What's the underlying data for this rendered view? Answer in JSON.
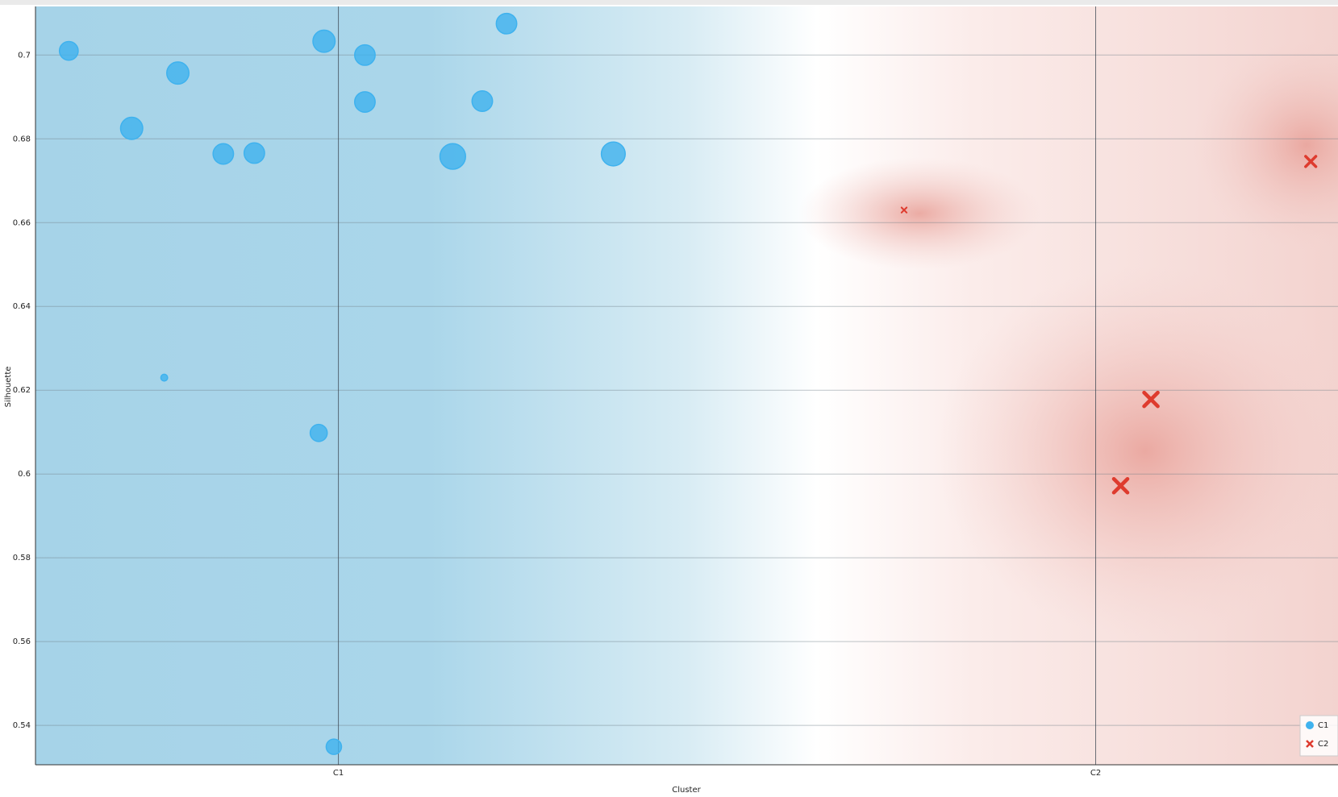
{
  "chart_data": {
    "type": "scatter",
    "x_label": "Cluster",
    "y_label": "Silhouette",
    "xlim": [
      -0.4,
      1.32
    ],
    "ylim": [
      0.5306,
      0.7116
    ],
    "xticks": [
      {
        "value": 0,
        "label": "C1"
      },
      {
        "value": 1,
        "label": "C2"
      }
    ],
    "yticks": [
      0.54,
      0.56,
      0.58,
      {
        "value": 0.6,
        "label": "0.6"
      },
      0.62,
      0.64,
      0.66,
      0.68,
      {
        "value": 0.7,
        "label": "0.7"
      }
    ],
    "grid": true,
    "legend": "lower right",
    "series": [
      {
        "name": "C1",
        "color": "#3fb2ee",
        "marker": "circle",
        "x": [
          -0.356,
          -0.273,
          -0.212,
          -0.23,
          -0.152,
          -0.111,
          -0.019,
          0.035,
          0.035,
          -0.026,
          -0.006,
          0.151,
          0.19,
          0.222,
          0.363
        ],
        "values": [
          0.701,
          0.6825,
          0.6957,
          0.623,
          0.6764,
          0.6766,
          0.7033,
          0.7,
          0.6888,
          0.6098,
          0.5349,
          0.6758,
          0.689,
          0.7075,
          0.6764
        ],
        "sizes": [
          11,
          13,
          13,
          4,
          12,
          12,
          13,
          12,
          12,
          10,
          9,
          15,
          12,
          12,
          14
        ]
      },
      {
        "name": "C2",
        "color": "#de3b2e",
        "marker": "x",
        "x": [
          0.747,
          1.073,
          1.033,
          1.284
        ],
        "values": [
          0.663,
          0.6178,
          0.5972,
          0.6746
        ],
        "sizes": [
          3,
          8,
          8,
          6
        ]
      }
    ]
  }
}
